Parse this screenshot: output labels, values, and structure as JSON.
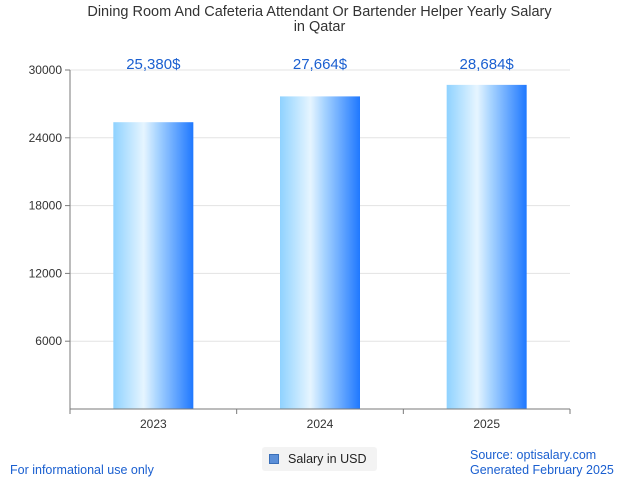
{
  "title_lines": [
    "Dining Room And Cafeteria Attendant Or Bartender Helper Yearly Salary",
    "in Qatar"
  ],
  "footer": {
    "left": "For informational use only",
    "source": "Source: optisalary.com",
    "generated": "Generated February 2025"
  },
  "legend": {
    "label": "Salary in USD"
  },
  "colors": {
    "bar_light": "#e6f5ff",
    "bar_mid": "#8fd2ff",
    "bar_dark": "#1f78ff",
    "value_label": "#1a5fd0",
    "grid": "#e3e3e3",
    "axis": "#7a7a7a"
  },
  "chart_data": {
    "type": "bar",
    "title": "Dining Room And Cafeteria Attendant Or Bartender Helper Yearly Salary in Qatar",
    "categories": [
      "2023",
      "2024",
      "2025"
    ],
    "series": [
      {
        "name": "Salary in USD",
        "values": [
          25380,
          27664,
          28684
        ]
      }
    ],
    "value_labels": [
      "25,380$",
      "27,664$",
      "28,684$"
    ],
    "ylim": [
      0,
      30000
    ],
    "yticks": [
      6000,
      12000,
      18000,
      24000,
      30000
    ],
    "grid": true,
    "legend_position": "bottom-center"
  }
}
